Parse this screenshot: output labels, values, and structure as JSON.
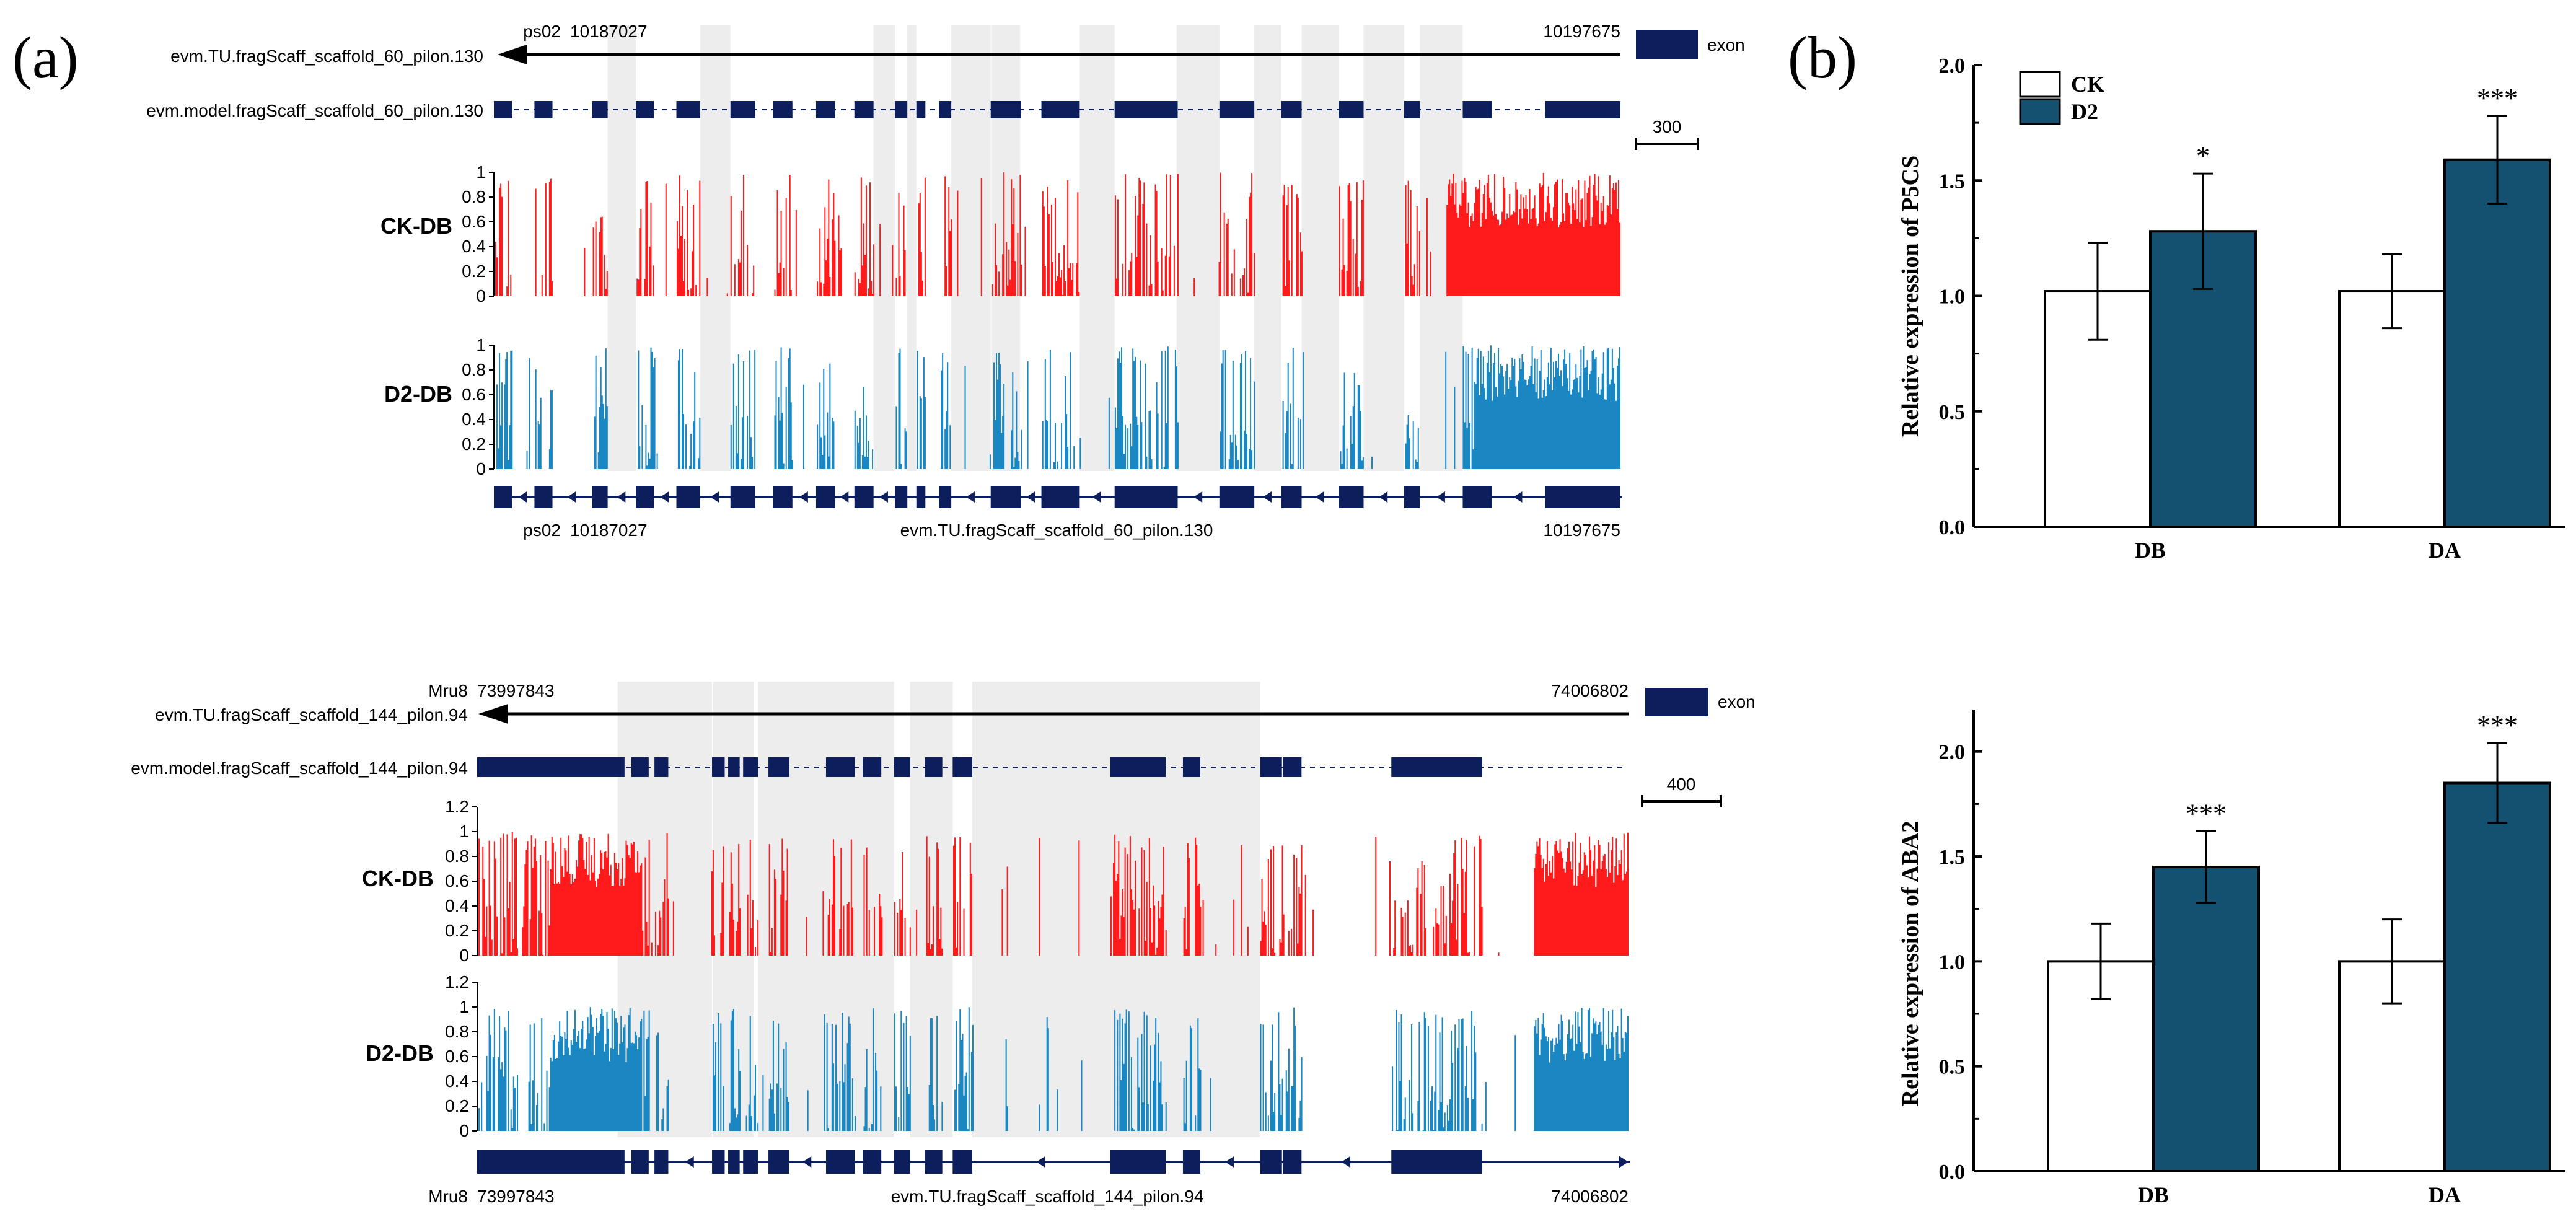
{
  "panel_labels": {
    "a": "(a)",
    "b": "(b)"
  },
  "colors": {
    "exon": "#0c1f5c",
    "ck_track": "#ff1b1b",
    "d2_track": "#1a86c2",
    "shade": "#e9e9e9",
    "ck_bar": "#ffffff",
    "d2_bar": "#14506f"
  },
  "chart_data": [
    {
      "type": "coverage_track",
      "id": "p5cs_gene",
      "chrom": "ps02",
      "start": "10187027",
      "end": "10197675",
      "transcript_label": "evm.TU.fragScaff_scaffold_60_pilon.130",
      "model_label": "evm.model.fragScaff_scaffold_60_pilon.130",
      "legend": "exon",
      "scale_label": "300",
      "exons": [
        [
          0.0,
          0.016
        ],
        [
          0.036,
          0.052
        ],
        [
          0.087,
          0.101
        ],
        [
          0.126,
          0.142
        ],
        [
          0.162,
          0.183
        ],
        [
          0.21,
          0.232
        ],
        [
          0.248,
          0.265
        ],
        [
          0.286,
          0.303
        ],
        [
          0.32,
          0.337
        ],
        [
          0.356,
          0.367
        ],
        [
          0.375,
          0.383
        ],
        [
          0.395,
          0.406
        ],
        [
          0.441,
          0.468
        ],
        [
          0.486,
          0.52
        ],
        [
          0.551,
          0.607
        ],
        [
          0.644,
          0.675
        ],
        [
          0.699,
          0.717
        ],
        [
          0.75,
          0.772
        ],
        [
          0.808,
          0.822
        ],
        [
          0.86,
          0.886
        ],
        [
          0.933,
          1.0
        ]
      ],
      "shaded": [
        [
          0.101,
          0.126
        ],
        [
          0.183,
          0.21
        ],
        [
          0.337,
          0.356
        ],
        [
          0.367,
          0.375
        ],
        [
          0.406,
          0.441
        ],
        [
          0.442,
          0.467
        ],
        [
          0.52,
          0.551
        ],
        [
          0.606,
          0.644
        ],
        [
          0.675,
          0.699
        ],
        [
          0.717,
          0.75
        ],
        [
          0.772,
          0.808
        ],
        [
          0.822,
          0.86
        ]
      ],
      "y_ticks": [
        "0",
        "0.2",
        "0.4",
        "0.6",
        "0.8",
        "1"
      ],
      "ylim": [
        0,
        1
      ],
      "tracks": [
        {
          "name": "CK-DB",
          "dense": [
            [
              0.0,
              0.155
            ]
          ]
        },
        {
          "name": "D2-DB",
          "dense": [
            [
              0.0,
              0.13
            ]
          ]
        }
      ]
    },
    {
      "type": "coverage_track",
      "id": "aba2_gene",
      "chrom": "Mru8",
      "start": "73997843",
      "end": "74006802",
      "transcript_label": "evm.TU.fragScaff_scaffold_144_pilon.94",
      "model_label": "evm.model.fragScaff_scaffold_144_pilon.94",
      "legend": "exon",
      "scale_label": "400",
      "exons": [
        [
          0.0,
          0.128
        ],
        [
          0.134,
          0.149
        ],
        [
          0.154,
          0.166
        ],
        [
          0.204,
          0.215
        ],
        [
          0.218,
          0.228
        ],
        [
          0.231,
          0.244
        ],
        [
          0.253,
          0.271
        ],
        [
          0.303,
          0.328
        ],
        [
          0.335,
          0.351
        ],
        [
          0.362,
          0.376
        ],
        [
          0.389,
          0.404
        ],
        [
          0.413,
          0.43
        ],
        [
          0.55,
          0.598
        ],
        [
          0.613,
          0.628
        ],
        [
          0.68,
          0.699
        ],
        [
          0.7,
          0.716
        ],
        [
          0.794,
          0.873
        ]
      ],
      "shaded": [
        [
          0.122,
          0.18
        ],
        [
          0.18,
          0.204
        ],
        [
          0.205,
          0.24
        ],
        [
          0.244,
          0.266
        ],
        [
          0.266,
          0.303
        ],
        [
          0.303,
          0.362
        ],
        [
          0.376,
          0.413
        ],
        [
          0.43,
          0.475
        ],
        [
          0.475,
          0.51
        ],
        [
          0.51,
          0.55
        ],
        [
          0.55,
          0.598
        ],
        [
          0.598,
          0.68
        ]
      ],
      "y_ticks": [
        "0",
        "0.2",
        "0.4",
        "0.6",
        "0.8",
        "1",
        "1.2"
      ],
      "ylim": [
        0,
        1.2
      ],
      "tracks": [
        {
          "name": "CK-DB",
          "dense": [
            [
              0.0,
              0.083
            ],
            [
              0.857,
              0.937
            ]
          ]
        },
        {
          "name": "D2-DB",
          "dense": [
            [
              0.0,
              0.083
            ],
            [
              0.857,
              0.937
            ]
          ]
        }
      ]
    },
    {
      "type": "bar",
      "id": "p5cs_bar",
      "title": "",
      "categories": [
        "DB",
        "DA"
      ],
      "series": [
        {
          "name": "CK",
          "values": [
            1.02,
            1.02
          ],
          "errors": [
            0.21,
            0.16
          ]
        },
        {
          "name": "D2",
          "values": [
            1.28,
            1.59
          ],
          "errors": [
            0.25,
            0.19
          ]
        }
      ],
      "significance": [
        "*",
        "***"
      ],
      "xlabel": "",
      "ylabel": "Relative expression of P5CS",
      "ylim": [
        0.0,
        2.0
      ],
      "y_ticks": [
        "0.0",
        "0.5",
        "1.0",
        "1.5",
        "2.0"
      ],
      "legend_position": "top-left"
    },
    {
      "type": "bar",
      "id": "aba2_bar",
      "title": "",
      "categories": [
        "DB",
        "DA"
      ],
      "series": [
        {
          "name": "CK",
          "values": [
            1.0,
            1.0
          ],
          "errors": [
            0.18,
            0.2
          ]
        },
        {
          "name": "D2",
          "values": [
            1.45,
            1.85
          ],
          "errors": [
            0.17,
            0.19
          ]
        }
      ],
      "significance": [
        "***",
        "***"
      ],
      "xlabel": "",
      "ylabel": "Relative expression of ABA2",
      "ylim": [
        0.0,
        2.2
      ],
      "y_ticks": [
        "0.0",
        "0.5",
        "1.0",
        "1.5",
        "2.0"
      ]
    }
  ]
}
